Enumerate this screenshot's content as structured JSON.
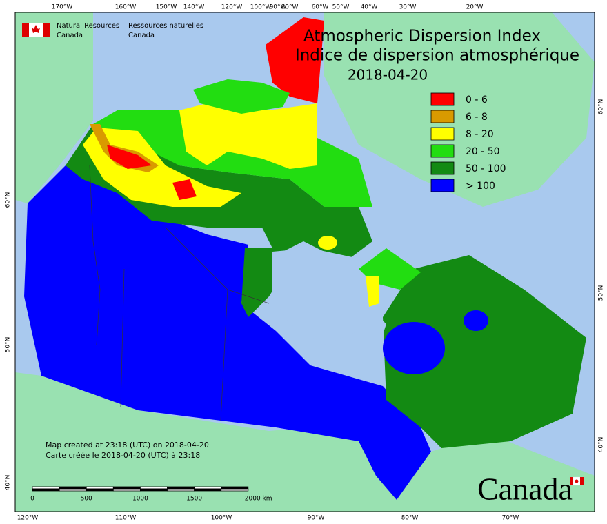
{
  "header": {
    "title_en": "Atmospheric Dispersion Index",
    "title_fr": "Indice de dispersion atmosphérique",
    "date": "2018-04-20"
  },
  "agency": {
    "en": [
      "Natural Resources",
      "Canada"
    ],
    "fr": [
      "Ressources naturelles",
      "Canada"
    ]
  },
  "legend": [
    {
      "label": "0 - 6",
      "color": "#ff0000"
    },
    {
      "label": "6 - 8",
      "color": "#d99a00"
    },
    {
      "label": "8 - 20",
      "color": "#ffff00"
    },
    {
      "label": "20 - 50",
      "color": "#22dd11"
    },
    {
      "label": "50 - 100",
      "color": "#138a13"
    },
    {
      "label": "> 100",
      "color": "#0000ff"
    }
  ],
  "notes": [
    "Map created at 23:18 (UTC) on 2018-04-20",
    "Carte créée le 2018-04-20 (UTC) à 23:18"
  ],
  "scale_bar": [
    "0",
    "500",
    "1000",
    "1500",
    "2000 km"
  ],
  "wordmark": "Canada",
  "graticule": {
    "top": [
      "170°W",
      "160°W",
      "150°W",
      "140°W",
      "120°W",
      "100°W",
      "90°W",
      "80°W",
      "60°W",
      "50°W",
      "40°W",
      "30°W",
      "20°W"
    ],
    "bottom": [
      "120°W",
      "110°W",
      "100°W",
      "90°W",
      "80°W",
      "70°W"
    ],
    "left": [
      "60°N",
      "50°N",
      "40°N"
    ],
    "right": [
      "60°N",
      "50°N",
      "40°N"
    ]
  }
}
